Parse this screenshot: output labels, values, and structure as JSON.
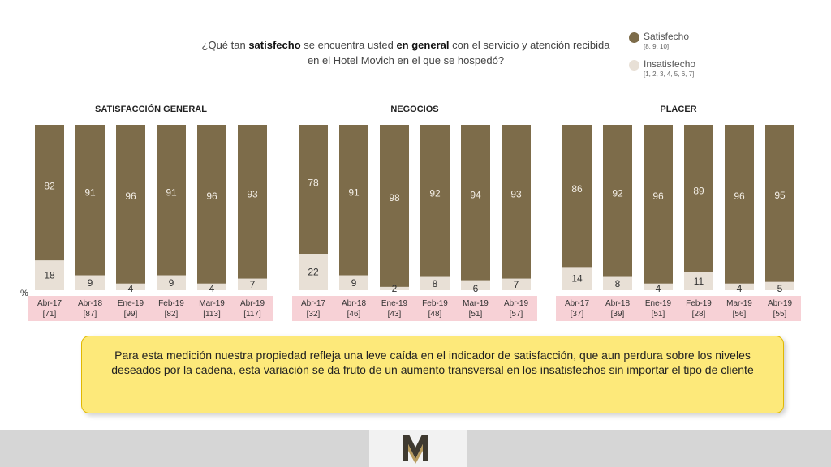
{
  "question": {
    "p1": "¿Qué tan ",
    "b1": "satisfecho",
    "p2": " se encuentra usted ",
    "b2": "en general",
    "p3": " con el servicio y atención recibida en el Hotel Movich en el que se hospedó?"
  },
  "legend": {
    "satisfied": {
      "label": "Satisfecho",
      "range": "[8, 9, 10]"
    },
    "dissatisfied": {
      "label": "Insatisfecho",
      "range": "[1, 2, 3, 4, 5, 6, 7]"
    }
  },
  "colors": {
    "satisfied": "#7d6c4a",
    "dissatisfied": "#e8e0d6",
    "label_band": "#f7d1d6",
    "callout_bg": "#fde97a",
    "callout_border": "#e0b800"
  },
  "percent_symbol": "%",
  "conclusion": "Para esta medición nuestra propiedad refleja una leve caída en el indicador de satisfacción, que aun perdura sobre los niveles deseados por la cadena, esta variación se da fruto de un aumento transversal en los insatisfechos sin importar el tipo de cliente",
  "chart_data": [
    {
      "type": "bar",
      "stacked": true,
      "title": "SATISFACCIÓN GENERAL",
      "categories": [
        "Abr-17",
        "Abr-18",
        "Ene-19",
        "Feb-19",
        "Mar-19",
        "Abr-19"
      ],
      "bases": [
        "[71]",
        "[87]",
        "[99]",
        "[82]",
        "[113]",
        "[117]"
      ],
      "series": [
        {
          "name": "Satisfecho",
          "values": [
            82,
            91,
            96,
            91,
            96,
            93
          ]
        },
        {
          "name": "Insatisfecho",
          "values": [
            18,
            9,
            4,
            9,
            4,
            7
          ]
        }
      ],
      "ylim": [
        0,
        100
      ]
    },
    {
      "type": "bar",
      "stacked": true,
      "title": "NEGOCIOS",
      "categories": [
        "Abr-17",
        "Abr-18",
        "Ene-19",
        "Feb-19",
        "Mar-19",
        "Abr-19"
      ],
      "bases": [
        "[32]",
        "[46]",
        "[43]",
        "[48]",
        "[51]",
        "[57]"
      ],
      "series": [
        {
          "name": "Satisfecho",
          "values": [
            78,
            91,
            98,
            92,
            94,
            93
          ]
        },
        {
          "name": "Insatisfecho",
          "values": [
            22,
            9,
            2,
            8,
            6,
            7
          ]
        }
      ],
      "ylim": [
        0,
        100
      ]
    },
    {
      "type": "bar",
      "stacked": true,
      "title": "PLACER",
      "categories": [
        "Abr-17",
        "Abr-18",
        "Ene-19",
        "Feb-19",
        "Mar-19",
        "Abr-19"
      ],
      "bases": [
        "[37]",
        "[39]",
        "[51]",
        "[28]",
        "[56]",
        "[55]"
      ],
      "series": [
        {
          "name": "Satisfecho",
          "values": [
            86,
            92,
            96,
            89,
            96,
            95
          ]
        },
        {
          "name": "Insatisfecho",
          "values": [
            14,
            8,
            4,
            11,
            4,
            5
          ]
        }
      ],
      "ylim": [
        0,
        100
      ]
    }
  ]
}
